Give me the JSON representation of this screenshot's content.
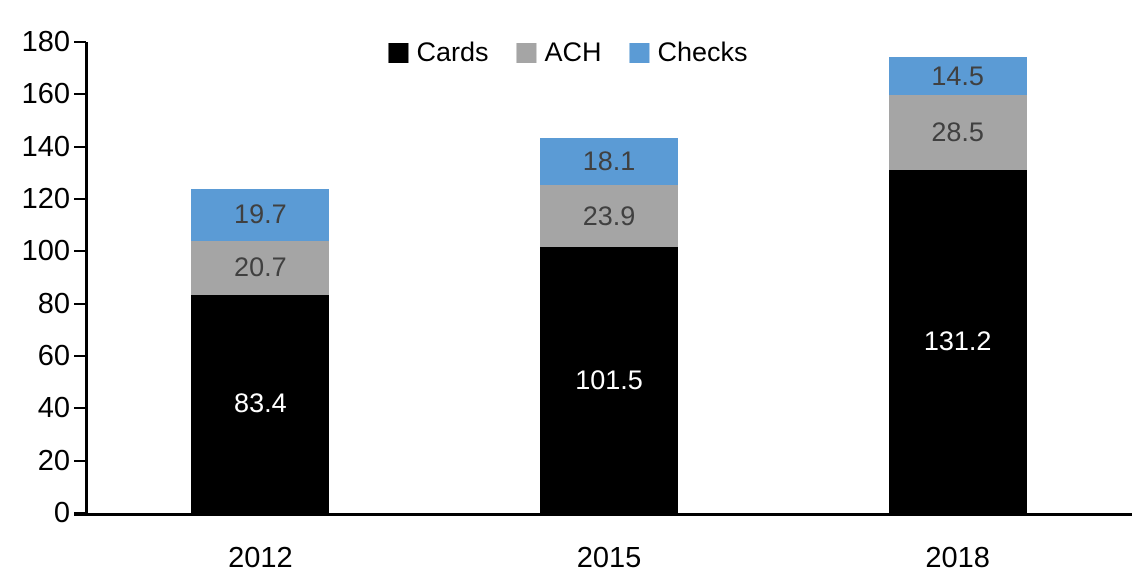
{
  "chart_data": {
    "type": "bar",
    "stacked": true,
    "title": "",
    "xlabel": "",
    "ylabel": "",
    "categories": [
      "2012",
      "2015",
      "2018"
    ],
    "series": [
      {
        "name": "Cards",
        "color": "#000000",
        "label_color": "#FFFFFF",
        "values": [
          83.4,
          101.5,
          131.2
        ]
      },
      {
        "name": "ACH",
        "color": "#A5A5A5",
        "label_color": "#404040",
        "values": [
          20.7,
          23.9,
          28.5
        ]
      },
      {
        "name": "Checks",
        "color": "#5B9BD5",
        "label_color": "#404040",
        "values": [
          19.7,
          18.1,
          14.5
        ]
      }
    ],
    "totals": [
      123.8,
      143.5,
      174.2
    ],
    "ylim": [
      0,
      180
    ],
    "yticks": [
      0,
      20,
      40,
      60,
      80,
      100,
      120,
      140,
      160,
      180
    ],
    "grid": false,
    "legend_position": "top-center",
    "legend": [
      "Cards",
      "ACH",
      "Checks"
    ],
    "data_label_decimals": 1
  },
  "colors": {
    "axis": "#000000",
    "background": "#FFFFFF",
    "tick_label": "#000000"
  }
}
